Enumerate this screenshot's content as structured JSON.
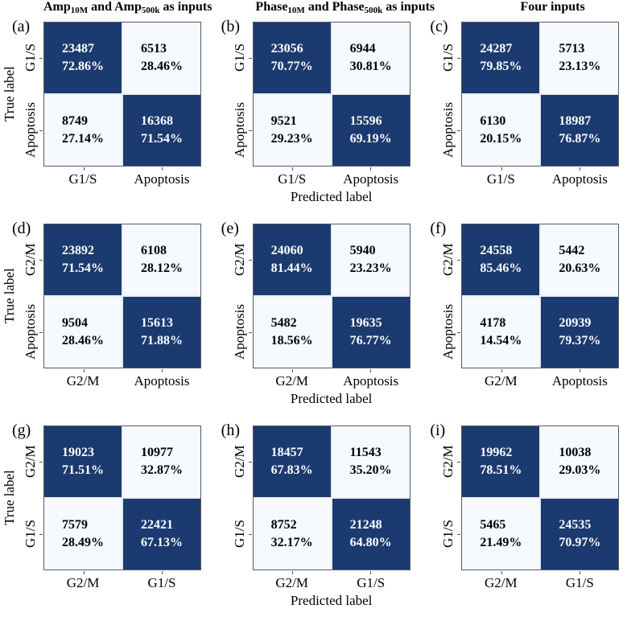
{
  "figure": {
    "column_headers": [
      {
        "pre": "Amp",
        "sub1": "10M",
        "mid": " and Amp",
        "sub2": "500k",
        "post": " as inputs"
      },
      {
        "pre": "Phase",
        "sub1": "10M",
        "mid": " and Phase",
        "sub2": "500k",
        "post": " as inputs"
      },
      {
        "pre": "Four inputs",
        "sub1": "",
        "mid": "",
        "sub2": "",
        "post": ""
      }
    ],
    "y_axis_title": "True label",
    "x_axis_title": "Predicted label"
  },
  "colors": {
    "diagonal_cell": "#1b3a6f",
    "off_diagonal_cell": "#f6f9fd",
    "text_on_dark": "#ffffff",
    "text_on_light": "#000000"
  },
  "chart_data": [
    {
      "type": "heatmap",
      "panel": "(a)",
      "true_labels": [
        "G1/S",
        "Apoptosis"
      ],
      "predicted_labels": [
        "G1/S",
        "Apoptosis"
      ],
      "cells": [
        {
          "count": 23487,
          "percent": "72.86%"
        },
        {
          "count": 6513,
          "percent": "28.46%"
        },
        {
          "count": 8749,
          "percent": "27.14%"
        },
        {
          "count": 16368,
          "percent": "71.54%"
        }
      ]
    },
    {
      "type": "heatmap",
      "panel": "(b)",
      "true_labels": [
        "G1/S",
        "Apoptosis"
      ],
      "predicted_labels": [
        "G1/S",
        "Apoptosis"
      ],
      "cells": [
        {
          "count": 23056,
          "percent": "70.77%"
        },
        {
          "count": 6944,
          "percent": "30.81%"
        },
        {
          "count": 9521,
          "percent": "29.23%"
        },
        {
          "count": 15596,
          "percent": "69.19%"
        }
      ]
    },
    {
      "type": "heatmap",
      "panel": "(c)",
      "true_labels": [
        "G1/S",
        "Apoptosis"
      ],
      "predicted_labels": [
        "G1/S",
        "Apoptosis"
      ],
      "cells": [
        {
          "count": 24287,
          "percent": "79.85%"
        },
        {
          "count": 5713,
          "percent": "23.13%"
        },
        {
          "count": 6130,
          "percent": "20.15%"
        },
        {
          "count": 18987,
          "percent": "76.87%"
        }
      ]
    },
    {
      "type": "heatmap",
      "panel": "(d)",
      "true_labels": [
        "G2/M",
        "Apoptosis"
      ],
      "predicted_labels": [
        "G2/M",
        "Apoptosis"
      ],
      "cells": [
        {
          "count": 23892,
          "percent": "71.54%"
        },
        {
          "count": 6108,
          "percent": "28.12%"
        },
        {
          "count": 9504,
          "percent": "28.46%"
        },
        {
          "count": 15613,
          "percent": "71.88%"
        }
      ]
    },
    {
      "type": "heatmap",
      "panel": "(e)",
      "true_labels": [
        "G2/M",
        "Apoptosis"
      ],
      "predicted_labels": [
        "G2/M",
        "Apoptosis"
      ],
      "cells": [
        {
          "count": 24060,
          "percent": "81.44%"
        },
        {
          "count": 5940,
          "percent": "23.23%"
        },
        {
          "count": 5482,
          "percent": "18.56%"
        },
        {
          "count": 19635,
          "percent": "76.77%"
        }
      ]
    },
    {
      "type": "heatmap",
      "panel": "(f)",
      "true_labels": [
        "G2/M",
        "Apoptosis"
      ],
      "predicted_labels": [
        "G2/M",
        "Apoptosis"
      ],
      "cells": [
        {
          "count": 24558,
          "percent": "85.46%"
        },
        {
          "count": 5442,
          "percent": "20.63%"
        },
        {
          "count": 4178,
          "percent": "14.54%"
        },
        {
          "count": 20939,
          "percent": "79.37%"
        }
      ]
    },
    {
      "type": "heatmap",
      "panel": "(g)",
      "true_labels": [
        "G2/M",
        "G1/S"
      ],
      "predicted_labels": [
        "G2/M",
        "G1/S"
      ],
      "cells": [
        {
          "count": 19023,
          "percent": "71.51%"
        },
        {
          "count": 10977,
          "percent": "32.87%"
        },
        {
          "count": 7579,
          "percent": "28.49%"
        },
        {
          "count": 22421,
          "percent": "67.13%"
        }
      ]
    },
    {
      "type": "heatmap",
      "panel": "(h)",
      "true_labels": [
        "G2/M",
        "G1/S"
      ],
      "predicted_labels": [
        "G2/M",
        "G1/S"
      ],
      "cells": [
        {
          "count": 18457,
          "percent": "67.83%"
        },
        {
          "count": 11543,
          "percent": "35.20%"
        },
        {
          "count": 8752,
          "percent": "32.17%"
        },
        {
          "count": 21248,
          "percent": "64.80%"
        }
      ]
    },
    {
      "type": "heatmap",
      "panel": "(i)",
      "true_labels": [
        "G2/M",
        "G1/S"
      ],
      "predicted_labels": [
        "G2/M",
        "G1/S"
      ],
      "cells": [
        {
          "count": 19962,
          "percent": "78.51%"
        },
        {
          "count": 10038,
          "percent": "29.03%"
        },
        {
          "count": 5465,
          "percent": "21.49%"
        },
        {
          "count": 24535,
          "percent": "70.97%"
        }
      ]
    }
  ]
}
